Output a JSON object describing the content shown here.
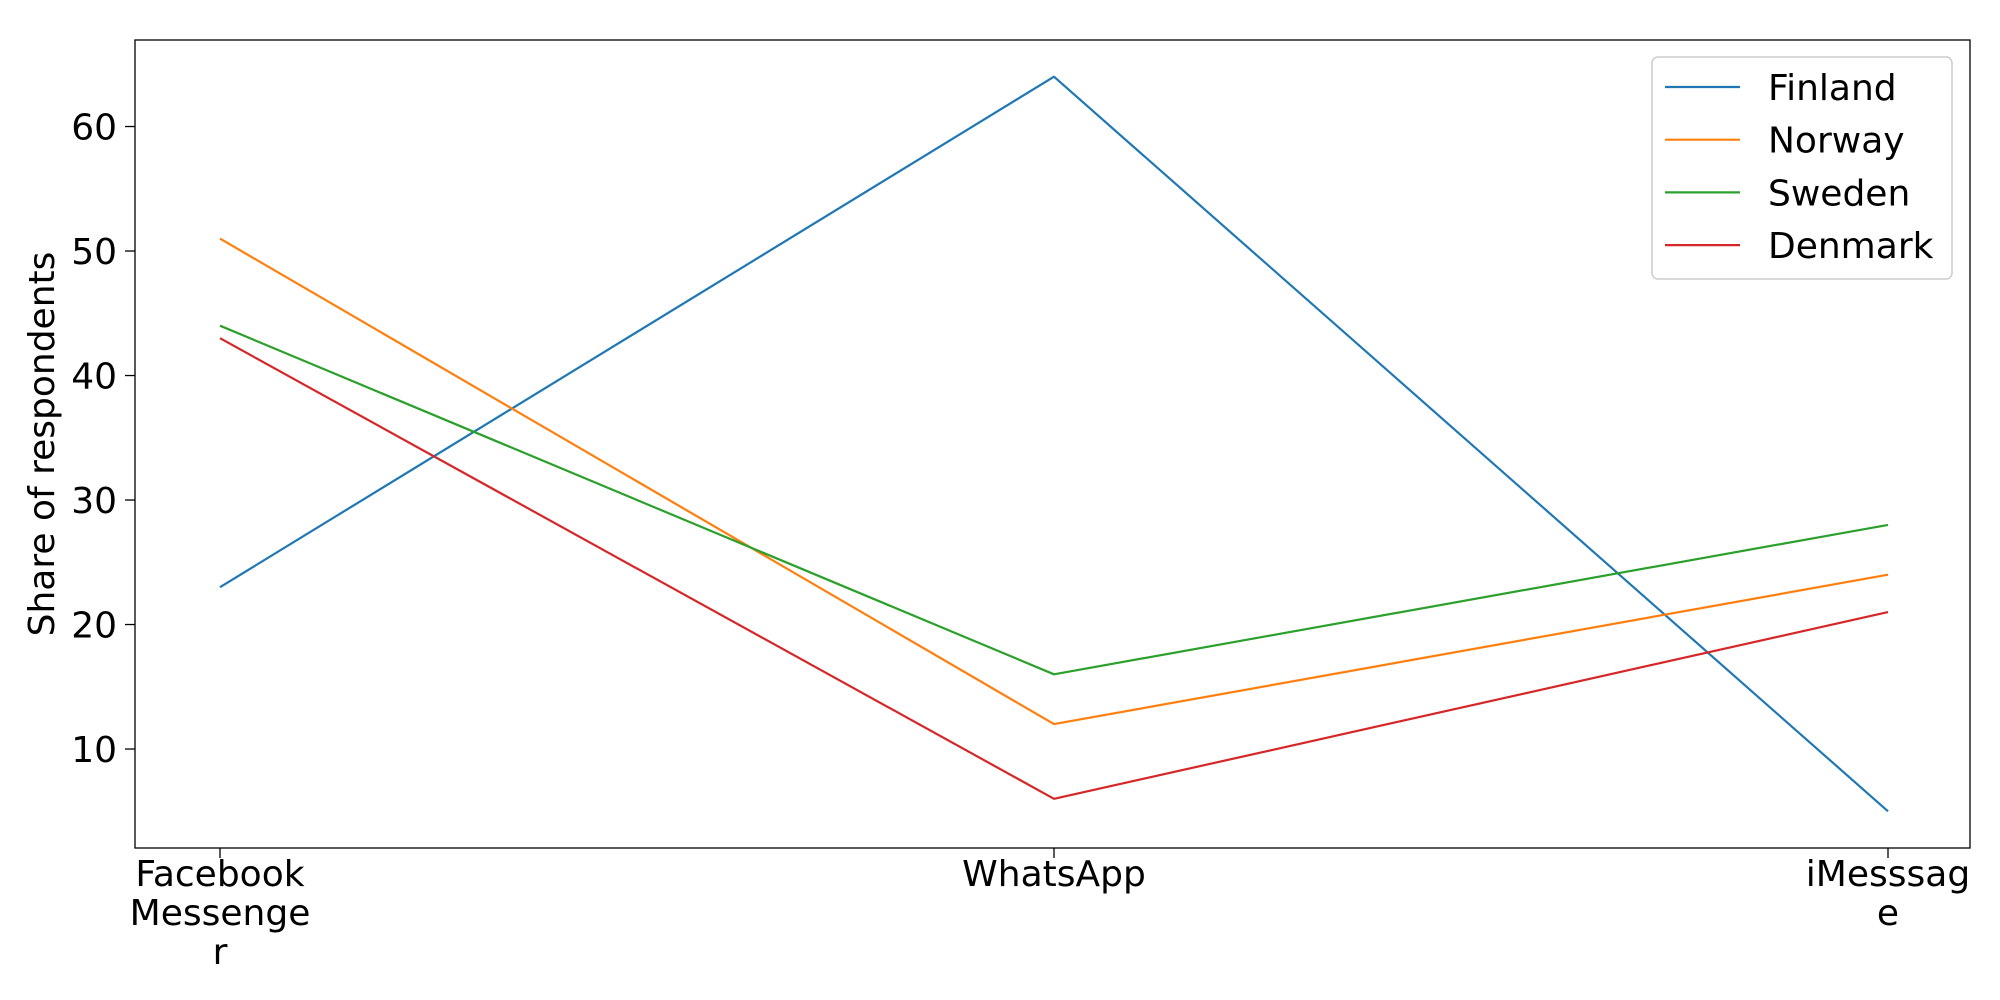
{
  "chart_data": {
    "type": "line",
    "title": "",
    "xlabel": "",
    "ylabel": "Share of respondents",
    "categories": [
      "Facebook Messenger",
      "WhatsApp",
      "iMesssage"
    ],
    "category_tick_lines": [
      [
        "Facebook",
        "Messenge",
        "r"
      ],
      [
        "WhatsApp"
      ],
      [
        "iMesssag",
        "e"
      ]
    ],
    "series": [
      {
        "name": "Finland",
        "color": "#1f77b4",
        "values": [
          23,
          64,
          5
        ]
      },
      {
        "name": "Norway",
        "color": "#ff7f0e",
        "values": [
          51,
          12,
          24
        ]
      },
      {
        "name": "Sweden",
        "color": "#2ca02c",
        "values": [
          44,
          16,
          28
        ]
      },
      {
        "name": "Denmark",
        "color": "#d62728",
        "values": [
          43,
          6,
          21
        ]
      }
    ],
    "ylim": [
      2.05,
      66.95
    ],
    "yticks": [
      10,
      20,
      30,
      40,
      50,
      60
    ],
    "grid": false,
    "legend_position": "top-right"
  }
}
